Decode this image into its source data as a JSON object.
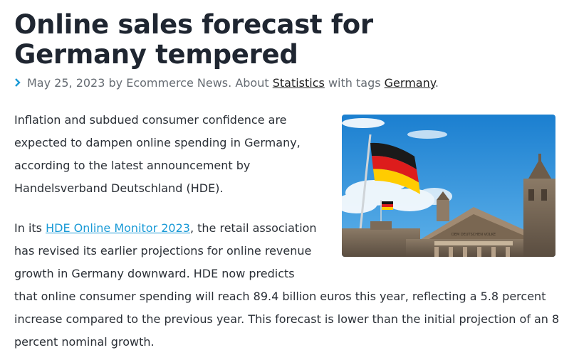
{
  "article": {
    "title": "Online sales forecast for Germany tempered",
    "meta": {
      "date": "May 25, 2023",
      "by_text": "by",
      "author": "Ecommerce News.",
      "about_text": "About",
      "category": "Statistics",
      "tags_text": "with tags",
      "tag": "Germany",
      "end": "."
    },
    "paragraph1": "Inflation and subdued consumer confidence are expected to dampen online spending in Germany, according to the latest announcement by Handelsverband Deutschland (HDE).",
    "paragraph2": {
      "prefix": "In its",
      "link": "HDE Online Monitor 2023",
      "text": ", the retail association has revised its earlier projections for online revenue growth in Germany downward. HDE now predicts that online consumer spending will reach 89.4 billion euros this year, reflecting a 5.8 percent increase compared to the previous year. This forecast is lower than the initial projection of an 8 percent nominal growth."
    },
    "image": {
      "subject": "German flag flying above the Reichstag building",
      "inscription": "DEM DEUTSCHEN VOLKE"
    }
  },
  "colors": {
    "link": "#1a9ad6",
    "title": "#1f2631",
    "body_text": "#2a2f36",
    "meta_text": "#666c73"
  },
  "icons": {
    "meta_bullet": "chevron-right-icon"
  }
}
